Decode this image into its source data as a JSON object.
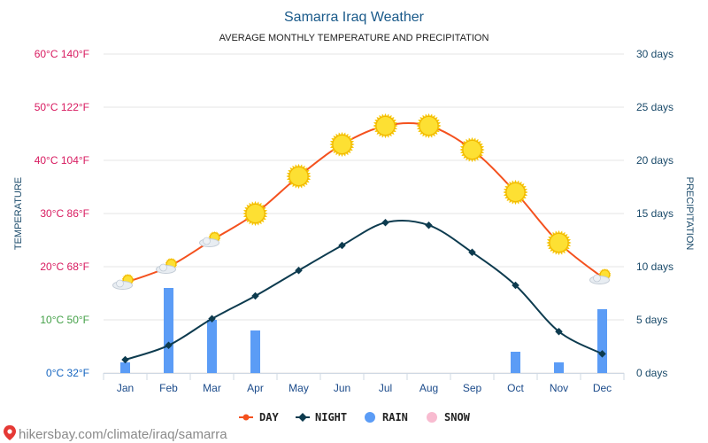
{
  "chart_data": {
    "type": "bar+line",
    "title": "Samarra Iraq Weather",
    "subtitle": "AVERAGE MONTHLY TEMPERATURE AND PRECIPITATION",
    "categories": [
      "Jan",
      "Feb",
      "Mar",
      "Apr",
      "May",
      "Jun",
      "Jul",
      "Aug",
      "Sep",
      "Oct",
      "Nov",
      "Dec"
    ],
    "y_left_label": "TEMPERATURE",
    "y_right_label": "PRECIPITATION",
    "y_left_ticks": [
      {
        "c": 0,
        "label": "0°C 32°F",
        "color": "#1565c0"
      },
      {
        "c": 10,
        "label": "10°C 50°F",
        "color": "#43a047"
      },
      {
        "c": 20,
        "label": "20°C 68°F",
        "color": "#d81b60"
      },
      {
        "c": 30,
        "label": "30°C 86°F",
        "color": "#d81b60"
      },
      {
        "c": 40,
        "label": "40°C 104°F",
        "color": "#d81b60"
      },
      {
        "c": 50,
        "label": "50°C 122°F",
        "color": "#d81b60"
      },
      {
        "c": 60,
        "label": "60°C 140°F",
        "color": "#d81b60"
      }
    ],
    "y_left_range": [
      0,
      60
    ],
    "y_right_ticks": [
      {
        "d": 0,
        "label": "0 days"
      },
      {
        "d": 5,
        "label": "5 days"
      },
      {
        "d": 10,
        "label": "10 days"
      },
      {
        "d": 15,
        "label": "15 days"
      },
      {
        "d": 20,
        "label": "20 days"
      },
      {
        "d": 25,
        "label": "25 days"
      },
      {
        "d": 30,
        "label": "30 days"
      }
    ],
    "y_right_range": [
      0,
      30
    ],
    "series": [
      {
        "name": "DAY",
        "kind": "line",
        "axis": "left",
        "color": "#f4511e",
        "values": [
          17,
          20,
          25,
          30,
          37,
          43,
          46.5,
          46.5,
          42,
          34,
          24.5,
          18
        ]
      },
      {
        "name": "NIGHT",
        "kind": "line",
        "axis": "left",
        "color": "#0d3b4f",
        "values": [
          2.5,
          5.2,
          10.2,
          14.5,
          19.3,
          24,
          28.3,
          27.8,
          22.7,
          16.5,
          7.8,
          3.6
        ]
      },
      {
        "name": "RAIN",
        "kind": "bar",
        "axis": "right",
        "color": "#5b9cf6",
        "values": [
          1,
          8,
          5,
          4,
          0,
          0,
          0,
          0,
          0,
          2,
          1,
          6
        ]
      },
      {
        "name": "SNOW",
        "kind": "bar",
        "axis": "right",
        "color": "#f8bbd0",
        "values": [
          0,
          0,
          0,
          0,
          0,
          0,
          0,
          0,
          0,
          0,
          0,
          0
        ]
      }
    ],
    "weather_icons": [
      "sun-cloud",
      "sun-cloud",
      "sun-cloud",
      "sun",
      "sun",
      "sun",
      "sun",
      "sun",
      "sun",
      "sun",
      "sun",
      "sun-cloud"
    ],
    "grid": true,
    "legend_position": "bottom-center"
  },
  "colors": {
    "title": "#1a5a8a",
    "subtitle": "#222222",
    "axis_label": "#1a4a6a",
    "x_tick": "#1a4a8a",
    "right_tick": "#1a4a6a",
    "grid": "#e6e6e6"
  },
  "source": "hikersbay.com/climate/iraq/samarra"
}
